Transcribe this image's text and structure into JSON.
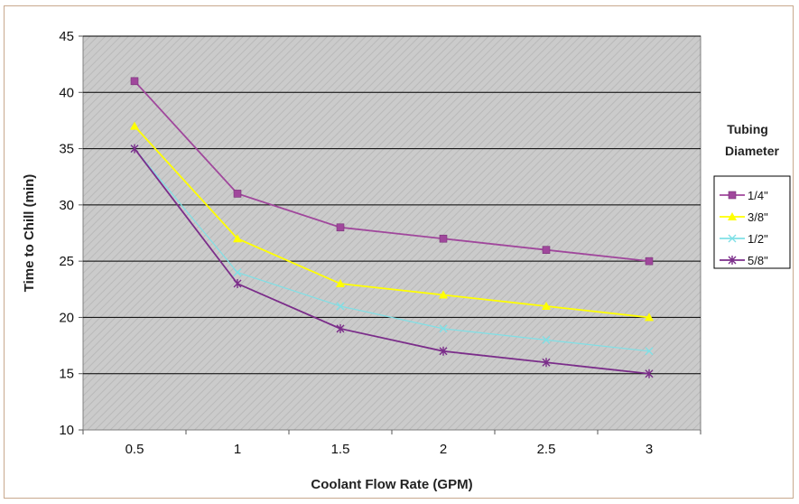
{
  "chart_data": {
    "type": "line",
    "xlabel": "Coolant Flow Rate (GPM)",
    "ylabel": "Time to Chill (min)",
    "x": [
      0.5,
      1,
      1.5,
      2,
      2.5,
      3
    ],
    "x_tick_labels": [
      "0.5",
      "1",
      "1.5",
      "2",
      "2.5",
      "3"
    ],
    "ylim": [
      10,
      45
    ],
    "y_ticks": [
      10,
      15,
      20,
      25,
      30,
      35,
      40,
      45
    ],
    "grid": "horizontal",
    "legend": {
      "title_line1": "Tubing",
      "title_line2": "Diameter",
      "position": "right"
    },
    "series": [
      {
        "name": "1/4\"",
        "values": [
          41,
          31,
          28,
          27,
          26,
          25
        ],
        "color": "#a0479c",
        "marker": "square"
      },
      {
        "name": "3/8\"",
        "values": [
          37,
          27,
          23,
          22,
          21,
          20
        ],
        "color": "#ffff00",
        "marker": "triangle"
      },
      {
        "name": "1/2\"",
        "values": [
          35,
          24,
          21,
          19,
          18,
          17
        ],
        "color": "#7fe0e6",
        "marker": "x"
      },
      {
        "name": "5/8\"",
        "values": [
          35,
          23,
          19,
          17,
          16,
          15
        ],
        "color": "#7b2d8a",
        "marker": "star"
      }
    ]
  },
  "colors": {
    "plot_background": "#c8c8c8",
    "gridline": "#000000",
    "frame_border": "#c9a98e"
  }
}
